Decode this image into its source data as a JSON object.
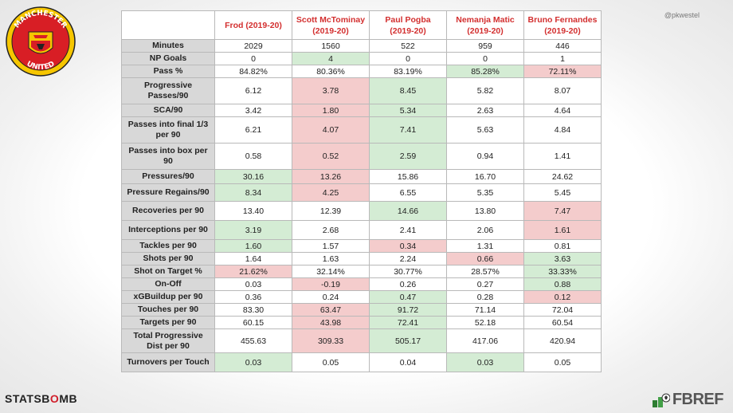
{
  "header": {
    "players": [
      "Frod (2019-20)",
      "Scott McTominay (2019-20)",
      "Paul Pogba (2019-20)",
      "Nemanja Matic (2019-20)",
      "Bruno Fernandes (2019-20)"
    ]
  },
  "rows": [
    {
      "label": "Minutes",
      "values": [
        "2029",
        "1560",
        "522",
        "959",
        "446"
      ],
      "status": [
        "",
        "",
        "",
        "",
        ""
      ]
    },
    {
      "label": "NP Goals",
      "values": [
        "0",
        "4",
        "0",
        "0",
        "1"
      ],
      "status": [
        "",
        "good",
        "",
        "",
        ""
      ]
    },
    {
      "label": "Pass %",
      "values": [
        "84.82%",
        "80.36%",
        "83.19%",
        "85.28%",
        "72.11%"
      ],
      "status": [
        "",
        "",
        "",
        "good",
        "bad"
      ]
    },
    {
      "label": "Progressive Passes/90",
      "values": [
        "6.12",
        "3.78",
        "8.45",
        "5.82",
        "8.07"
      ],
      "status": [
        "",
        "bad",
        "good",
        "",
        ""
      ]
    },
    {
      "label": "SCA/90",
      "values": [
        "3.42",
        "1.80",
        "5.34",
        "2.63",
        "4.64"
      ],
      "status": [
        "",
        "bad",
        "good",
        "",
        ""
      ]
    },
    {
      "label": "Passes into final 1/3 per 90",
      "values": [
        "6.21",
        "4.07",
        "7.41",
        "5.63",
        "4.84"
      ],
      "status": [
        "",
        "bad",
        "good",
        "",
        ""
      ]
    },
    {
      "label": "Passes into box per 90",
      "values": [
        "0.58",
        "0.52",
        "2.59",
        "0.94",
        "1.41"
      ],
      "status": [
        "",
        "bad",
        "good",
        "",
        ""
      ]
    },
    {
      "label": "Pressures/90",
      "values": [
        "30.16",
        "13.26",
        "15.86",
        "16.70",
        "24.62"
      ],
      "status": [
        "good",
        "bad",
        "",
        "",
        ""
      ]
    },
    {
      "label": "Pressure Regains/90",
      "values": [
        "8.34",
        "4.25",
        "6.55",
        "5.35",
        "5.45"
      ],
      "status": [
        "good",
        "bad",
        "",
        "",
        ""
      ]
    },
    {
      "label": "Recoveries per 90",
      "values": [
        "13.40",
        "12.39",
        "14.66",
        "13.80",
        "7.47"
      ],
      "status": [
        "",
        "",
        "good",
        "",
        "bad"
      ]
    },
    {
      "label": "Interceptions per 90",
      "values": [
        "3.19",
        "2.68",
        "2.41",
        "2.06",
        "1.61"
      ],
      "status": [
        "good",
        "",
        "",
        "",
        "bad"
      ]
    },
    {
      "label": "Tackles per 90",
      "values": [
        "1.60",
        "1.57",
        "0.34",
        "1.31",
        "0.81"
      ],
      "status": [
        "good",
        "",
        "bad",
        "",
        ""
      ]
    },
    {
      "label": "Shots per 90",
      "values": [
        "1.64",
        "1.63",
        "2.24",
        "0.66",
        "3.63"
      ],
      "status": [
        "",
        "",
        "",
        "bad",
        "good"
      ]
    },
    {
      "label": "Shot on Target %",
      "values": [
        "21.62%",
        "32.14%",
        "30.77%",
        "28.57%",
        "33.33%"
      ],
      "status": [
        "bad",
        "",
        "",
        "",
        "good"
      ]
    },
    {
      "label": "On-Off",
      "values": [
        "0.03",
        "-0.19",
        "0.26",
        "0.27",
        "0.88"
      ],
      "status": [
        "",
        "bad",
        "",
        "",
        "good"
      ]
    },
    {
      "label": "xGBuildup per 90",
      "values": [
        "0.36",
        "0.24",
        "0.47",
        "0.28",
        "0.12"
      ],
      "status": [
        "",
        "",
        "good",
        "",
        "bad"
      ]
    },
    {
      "label": "Touches per 90",
      "values": [
        "83.30",
        "63.47",
        "91.72",
        "71.14",
        "72.04"
      ],
      "status": [
        "",
        "bad",
        "good",
        "",
        ""
      ]
    },
    {
      "label": "Targets per 90",
      "values": [
        "60.15",
        "43.98",
        "72.41",
        "52.18",
        "60.54"
      ],
      "status": [
        "",
        "bad",
        "good",
        "",
        ""
      ]
    },
    {
      "label": "Total Progressive Dist per 90",
      "values": [
        "455.63",
        "309.33",
        "505.17",
        "417.06",
        "420.94"
      ],
      "status": [
        "",
        "bad",
        "good",
        "",
        ""
      ]
    },
    {
      "label": "Turnovers per Touch",
      "values": [
        "0.03",
        "0.05",
        "0.04",
        "0.03",
        "0.05"
      ],
      "status": [
        "good",
        "",
        "",
        "good",
        ""
      ]
    }
  ],
  "row_heights": [
    16,
    16,
    16,
    33,
    16,
    33,
    33,
    18,
    22,
    24,
    24,
    16,
    16,
    16,
    16,
    16,
    16,
    16,
    30,
    24
  ],
  "watermark": "@pkwestel",
  "footer": {
    "statsbomb_left": "STATSB",
    "statsbomb_mid": "O",
    "statsbomb_right": "MB",
    "fbref": "FBREF"
  },
  "logo": {
    "top_text": "MANCHESTER",
    "bottom_text": "UNITED"
  },
  "colors": {
    "good": "#d4ecd4",
    "bad": "#f4cccc",
    "label_bg": "#d8d8d8",
    "player_red": "#d32f2f"
  }
}
